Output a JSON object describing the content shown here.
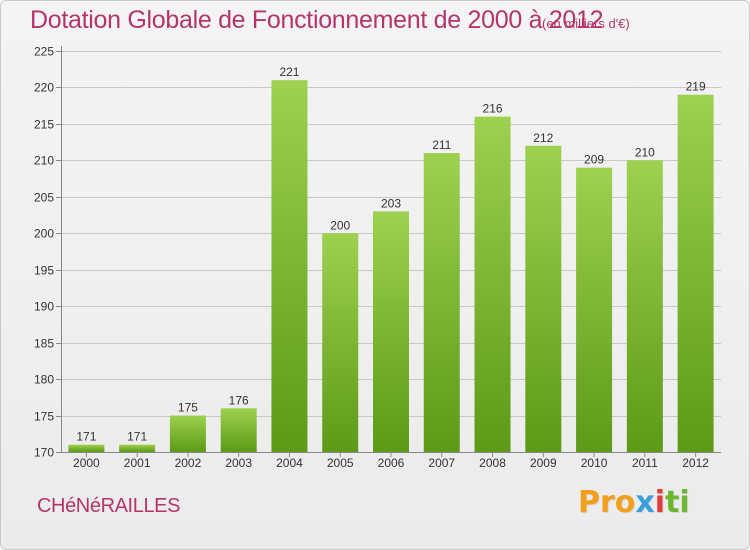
{
  "header": {
    "title": "Dotation Globale de Fonctionnement de 2000 à 2012",
    "unit": "(en milliers d'€)"
  },
  "footer": {
    "commune": "CHéNéRAILLES",
    "logo_parts": [
      "Pro",
      "x",
      "i",
      "ti"
    ]
  },
  "colors": {
    "bar_top": "#9dd14f",
    "bar_bottom": "#5c9a17",
    "grid": "#c8c8c8",
    "text_accent": "#b5356b"
  },
  "chart_data": {
    "type": "bar",
    "title": "Dotation Globale de Fonctionnement de 2000 à 2012",
    "subtitle": "(en milliers d'€)",
    "xlabel": "",
    "ylabel": "",
    "categories": [
      "2000",
      "2001",
      "2002",
      "2003",
      "2004",
      "2005",
      "2006",
      "2007",
      "2008",
      "2009",
      "2010",
      "2011",
      "2012"
    ],
    "values": [
      171,
      171,
      175,
      176,
      221,
      200,
      203,
      211,
      216,
      212,
      209,
      210,
      219
    ],
    "ylim": [
      170,
      225
    ],
    "yticks": [
      170,
      175,
      180,
      185,
      190,
      195,
      200,
      205,
      210,
      215,
      220,
      225
    ],
    "grid": true,
    "legend": "none"
  }
}
